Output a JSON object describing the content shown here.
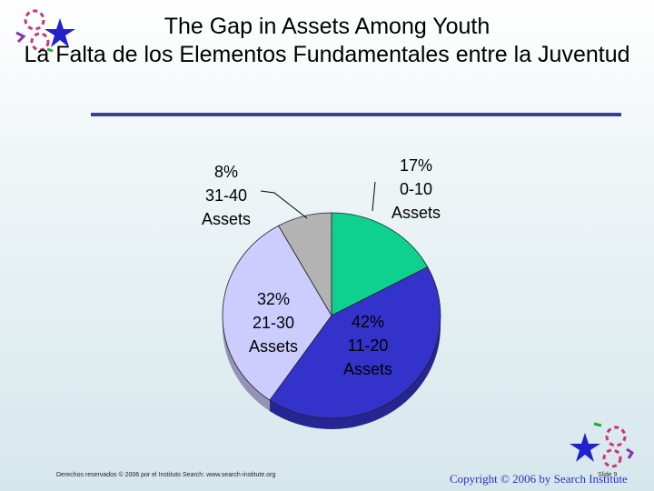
{
  "title": {
    "line1": "The Gap in Assets Among Youth",
    "line2": "La Falta de los Elementos Fundamentales entre la Juventud"
  },
  "chart_data": {
    "type": "pie",
    "slices": [
      {
        "percent_label": "17%",
        "range_label": "0-10",
        "unit_label": "Assets",
        "value": 17,
        "color": "#0fd18f"
      },
      {
        "percent_label": "42%",
        "range_label": "11-20",
        "unit_label": "Assets",
        "value": 42,
        "color": "#3333cc"
      },
      {
        "percent_label": "32%",
        "range_label": "21-30",
        "unit_label": "Assets",
        "value": 32,
        "color": "#ccccff"
      },
      {
        "percent_label": "8%",
        "range_label": "31-40",
        "unit_label": "Assets",
        "value": 8,
        "color": "#b3b3b3"
      }
    ]
  },
  "footer": {
    "rights": "Derechos reservados © 2006 por el Instituto Search: www.search-institute.org",
    "slide": "Slide 9",
    "copyright": "Copyright © 2006 by Search Institute"
  },
  "colors": {
    "accent": "#3a3f9c",
    "star": "#2222cc",
    "swirl": "#cc3377"
  },
  "icons": [
    "star-icon",
    "swirl-icon"
  ]
}
